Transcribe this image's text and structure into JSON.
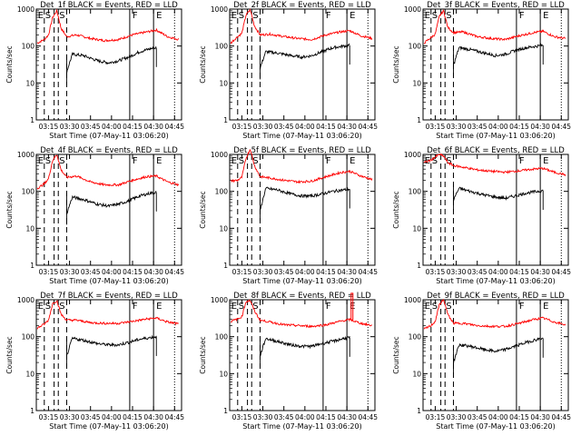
{
  "chart_data": {
    "type": "line",
    "panel_titles": [
      "Det_1f BLACK = Events, RED = LLD",
      "Det_2f BLACK = Events, RED = LLD",
      "Det_3f BLACK = Events, RED = LLD",
      "Det_4f BLACK = Events, RED = LLD",
      "Det_5f BLACK = Events, RED = LLD",
      "Det_6f BLACK = Events, RED = LLD",
      "Det_7f BLACK = Events, RED = LLD",
      "Det_8f BLACK = Events, RED = LLD",
      "Det_9f BLACK = Events, RED = LLD"
    ],
    "xlabel": "Start Time (07-May-11 03:06:20)",
    "ylabel": "Counts/sec",
    "y_scale": "log",
    "ylim": [
      1,
      1000
    ],
    "y_ticks": [
      "1",
      "10",
      "100",
      "1000"
    ],
    "x_ticks": [
      "03:15",
      "03:30",
      "03:45",
      "04:00",
      "04:15",
      "04:30",
      "04:45"
    ],
    "x_tick_minutes": [
      15,
      30,
      45,
      60,
      75,
      90,
      105
    ],
    "xlim_minutes": [
      6.3,
      110
    ],
    "markers": {
      "labels": [
        "E",
        "S",
        "S",
        "F",
        "E"
      ],
      "dashed_times": [
        "03:12",
        "03:19",
        "03:22",
        "03:28"
      ],
      "solid_times": [
        "04:13",
        "04:30"
      ],
      "dotted_time": "04:45"
    },
    "series_colors": {
      "events": "#000000",
      "lld": "#ff0000"
    },
    "series_time_minutes": [
      26,
      30,
      40,
      50,
      55,
      60,
      70,
      75,
      80,
      85,
      90,
      100,
      105
    ],
    "series_events_note": "BLACK = Events",
    "series_lld_note": "RED = LLD",
    "panels": [
      {
        "lld": [
          [
            7,
            120
          ],
          [
            12,
            150
          ],
          [
            15,
            200
          ],
          [
            18,
            600
          ],
          [
            21,
            900
          ],
          [
            24,
            300
          ],
          [
            28,
            180
          ],
          [
            35,
            200
          ],
          [
            45,
            160
          ],
          [
            55,
            140
          ],
          [
            65,
            150
          ],
          [
            75,
            200
          ],
          [
            85,
            240
          ],
          [
            92,
            270
          ],
          [
            100,
            180
          ],
          [
            108,
            150
          ]
        ],
        "events": [
          [
            28,
            20
          ],
          [
            32,
            60
          ],
          [
            40,
            55
          ],
          [
            50,
            40
          ],
          [
            58,
            35
          ],
          [
            65,
            40
          ],
          [
            72,
            50
          ],
          [
            80,
            70
          ],
          [
            88,
            85
          ],
          [
            92,
            90
          ]
        ],
        "spike": false
      },
      {
        "lld": [
          [
            7,
            120
          ],
          [
            12,
            180
          ],
          [
            15,
            220
          ],
          [
            18,
            700
          ],
          [
            21,
            950
          ],
          [
            24,
            350
          ],
          [
            28,
            200
          ],
          [
            35,
            210
          ],
          [
            45,
            180
          ],
          [
            55,
            160
          ],
          [
            65,
            150
          ],
          [
            75,
            200
          ],
          [
            85,
            240
          ],
          [
            92,
            260
          ],
          [
            100,
            190
          ],
          [
            108,
            160
          ]
        ],
        "events": [
          [
            28,
            25
          ],
          [
            32,
            70
          ],
          [
            40,
            65
          ],
          [
            50,
            55
          ],
          [
            58,
            50
          ],
          [
            65,
            55
          ],
          [
            72,
            70
          ],
          [
            80,
            90
          ],
          [
            88,
            100
          ],
          [
            92,
            105
          ]
        ],
        "spike": false
      },
      {
        "lld": [
          [
            7,
            120
          ],
          [
            12,
            170
          ],
          [
            15,
            210
          ],
          [
            18,
            650
          ],
          [
            21,
            900
          ],
          [
            24,
            320
          ],
          [
            28,
            230
          ],
          [
            35,
            240
          ],
          [
            45,
            180
          ],
          [
            55,
            160
          ],
          [
            65,
            150
          ],
          [
            75,
            190
          ],
          [
            85,
            230
          ],
          [
            92,
            250
          ],
          [
            100,
            180
          ],
          [
            108,
            160
          ]
        ],
        "events": [
          [
            28,
            30
          ],
          [
            32,
            90
          ],
          [
            40,
            80
          ],
          [
            50,
            65
          ],
          [
            58,
            55
          ],
          [
            65,
            60
          ],
          [
            72,
            75
          ],
          [
            80,
            90
          ],
          [
            88,
            100
          ],
          [
            92,
            105
          ]
        ],
        "spike": false
      },
      {
        "lld": [
          [
            7,
            120
          ],
          [
            12,
            160
          ],
          [
            15,
            220
          ],
          [
            18,
            700
          ],
          [
            21,
            1000
          ],
          [
            24,
            380
          ],
          [
            28,
            240
          ],
          [
            35,
            260
          ],
          [
            45,
            180
          ],
          [
            55,
            150
          ],
          [
            65,
            150
          ],
          [
            75,
            200
          ],
          [
            85,
            250
          ],
          [
            92,
            260
          ],
          [
            100,
            180
          ],
          [
            108,
            150
          ]
        ],
        "events": [
          [
            28,
            25
          ],
          [
            32,
            70
          ],
          [
            40,
            60
          ],
          [
            50,
            45
          ],
          [
            58,
            40
          ],
          [
            65,
            45
          ],
          [
            72,
            55
          ],
          [
            80,
            75
          ],
          [
            88,
            90
          ],
          [
            92,
            95
          ]
        ],
        "spike": false
      },
      {
        "lld": [
          [
            7,
            190
          ],
          [
            12,
            200
          ],
          [
            15,
            240
          ],
          [
            18,
            800
          ],
          [
            21,
            1400
          ],
          [
            24,
            500
          ],
          [
            28,
            250
          ],
          [
            35,
            230
          ],
          [
            45,
            200
          ],
          [
            55,
            180
          ],
          [
            65,
            190
          ],
          [
            75,
            250
          ],
          [
            85,
            320
          ],
          [
            92,
            350
          ],
          [
            100,
            260
          ],
          [
            108,
            210
          ]
        ],
        "events": [
          [
            28,
            30
          ],
          [
            32,
            120
          ],
          [
            40,
            110
          ],
          [
            50,
            85
          ],
          [
            58,
            75
          ],
          [
            65,
            75
          ],
          [
            72,
            85
          ],
          [
            80,
            100
          ],
          [
            88,
            110
          ],
          [
            92,
            115
          ]
        ],
        "spike": false
      },
      {
        "lld": [
          [
            7,
            600
          ],
          [
            12,
            700
          ],
          [
            15,
            850
          ],
          [
            18,
            1000
          ],
          [
            21,
            900
          ],
          [
            24,
            600
          ],
          [
            28,
            500
          ],
          [
            35,
            450
          ],
          [
            45,
            380
          ],
          [
            55,
            350
          ],
          [
            65,
            330
          ],
          [
            75,
            360
          ],
          [
            85,
            400
          ],
          [
            92,
            420
          ],
          [
            100,
            330
          ],
          [
            108,
            280
          ]
        ],
        "events": [
          [
            28,
            60
          ],
          [
            32,
            120
          ],
          [
            40,
            100
          ],
          [
            50,
            80
          ],
          [
            58,
            70
          ],
          [
            65,
            65
          ],
          [
            72,
            75
          ],
          [
            80,
            90
          ],
          [
            88,
            100
          ],
          [
            92,
            105
          ]
        ],
        "spike": false
      },
      {
        "lld": [
          [
            7,
            170
          ],
          [
            12,
            220
          ],
          [
            15,
            280
          ],
          [
            18,
            800
          ],
          [
            21,
            950
          ],
          [
            24,
            400
          ],
          [
            28,
            280
          ],
          [
            35,
            280
          ],
          [
            45,
            240
          ],
          [
            55,
            230
          ],
          [
            65,
            230
          ],
          [
            75,
            260
          ],
          [
            85,
            300
          ],
          [
            92,
            320
          ],
          [
            100,
            250
          ],
          [
            108,
            220
          ]
        ],
        "events": [
          [
            28,
            30
          ],
          [
            32,
            90
          ],
          [
            40,
            80
          ],
          [
            50,
            65
          ],
          [
            58,
            60
          ],
          [
            65,
            60
          ],
          [
            72,
            70
          ],
          [
            80,
            85
          ],
          [
            88,
            95
          ],
          [
            92,
            100
          ]
        ],
        "spike": false
      },
      {
        "lld": [
          [
            7,
            260
          ],
          [
            12,
            300
          ],
          [
            15,
            350
          ],
          [
            18,
            900
          ],
          [
            21,
            950
          ],
          [
            24,
            500
          ],
          [
            28,
            280
          ],
          [
            35,
            250
          ],
          [
            45,
            210
          ],
          [
            55,
            200
          ],
          [
            65,
            190
          ],
          [
            75,
            210
          ],
          [
            85,
            260
          ],
          [
            92,
            290
          ],
          [
            100,
            230
          ],
          [
            108,
            200
          ]
        ],
        "events": [
          [
            28,
            30
          ],
          [
            32,
            90
          ],
          [
            40,
            75
          ],
          [
            50,
            60
          ],
          [
            58,
            55
          ],
          [
            65,
            55
          ],
          [
            72,
            65
          ],
          [
            80,
            75
          ],
          [
            88,
            90
          ],
          [
            92,
            95
          ]
        ],
        "spike": true
      },
      {
        "lld": [
          [
            7,
            160
          ],
          [
            12,
            200
          ],
          [
            15,
            260
          ],
          [
            18,
            750
          ],
          [
            21,
            1000
          ],
          [
            24,
            400
          ],
          [
            28,
            230
          ],
          [
            35,
            230
          ],
          [
            45,
            200
          ],
          [
            55,
            190
          ],
          [
            65,
            190
          ],
          [
            75,
            230
          ],
          [
            85,
            290
          ],
          [
            92,
            320
          ],
          [
            100,
            250
          ],
          [
            108,
            210
          ]
        ],
        "events": [
          [
            28,
            20
          ],
          [
            32,
            60
          ],
          [
            40,
            55
          ],
          [
            50,
            45
          ],
          [
            58,
            40
          ],
          [
            65,
            45
          ],
          [
            72,
            55
          ],
          [
            80,
            70
          ],
          [
            88,
            85
          ],
          [
            92,
            90
          ]
        ],
        "spike": false
      }
    ]
  }
}
